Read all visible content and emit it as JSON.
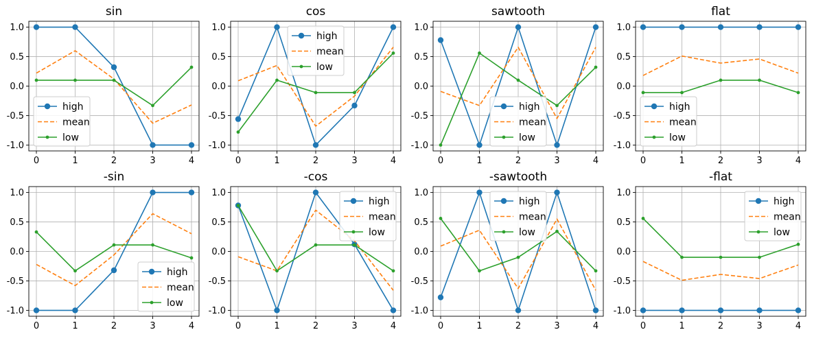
{
  "chart_data": [
    {
      "type": "line",
      "title": "sin",
      "x": [
        0,
        1,
        2,
        3,
        4
      ],
      "xticks": [
        "0",
        "1",
        "2",
        "3",
        "4"
      ],
      "yticks": [
        "1.0",
        "0.5",
        "0.0",
        "-0.5",
        "-1.0"
      ],
      "ylim": [
        -1.1,
        1.1
      ],
      "grid": true,
      "legend": "lower-left",
      "series": [
        {
          "name": "high",
          "values": [
            1.0,
            1.0,
            0.32,
            -1.0,
            -1.0
          ]
        },
        {
          "name": "mean",
          "values": [
            0.22,
            0.6,
            0.12,
            -0.63,
            -0.32
          ]
        },
        {
          "name": "low",
          "values": [
            0.1,
            0.1,
            0.1,
            -0.33,
            0.32
          ]
        }
      ]
    },
    {
      "type": "line",
      "title": "cos",
      "x": [
        0,
        1,
        2,
        3,
        4
      ],
      "xticks": [
        "0",
        "1",
        "2",
        "3",
        "4"
      ],
      "yticks": [
        "1.0",
        "0.5",
        "0.0",
        "-0.5",
        "-1.0"
      ],
      "ylim": [
        -1.1,
        1.1
      ],
      "grid": true,
      "legend": "upper-center",
      "series": [
        {
          "name": "high",
          "values": [
            -0.56,
            1.0,
            -1.0,
            -0.33,
            1.0
          ]
        },
        {
          "name": "mean",
          "values": [
            0.09,
            0.35,
            -0.68,
            -0.17,
            0.66
          ]
        },
        {
          "name": "low",
          "values": [
            -0.78,
            0.1,
            -0.11,
            -0.11,
            0.56
          ]
        }
      ]
    },
    {
      "type": "line",
      "title": "sawtooth",
      "x": [
        0,
        1,
        2,
        3,
        4
      ],
      "xticks": [
        "0",
        "1",
        "2",
        "3",
        "4"
      ],
      "yticks": [
        "1.0",
        "0.5",
        "0.0",
        "-0.5",
        "-1.0"
      ],
      "ylim": [
        -1.1,
        1.1
      ],
      "grid": true,
      "legend": "lower-center",
      "series": [
        {
          "name": "high",
          "values": [
            0.78,
            -1.0,
            1.0,
            -1.0,
            1.0
          ]
        },
        {
          "name": "mean",
          "values": [
            -0.09,
            -0.33,
            0.66,
            -0.55,
            0.66
          ]
        },
        {
          "name": "low",
          "values": [
            -1.0,
            0.56,
            0.1,
            -0.33,
            0.32
          ]
        }
      ]
    },
    {
      "type": "line",
      "title": "flat",
      "x": [
        0,
        1,
        2,
        3,
        4
      ],
      "xticks": [
        "0",
        "1",
        "2",
        "3",
        "4"
      ],
      "yticks": [
        "1.0",
        "0.5",
        "0.0",
        "-0.5",
        "-1.0"
      ],
      "ylim": [
        -1.1,
        1.1
      ],
      "grid": true,
      "legend": "lower-left",
      "series": [
        {
          "name": "high",
          "values": [
            1.0,
            1.0,
            1.0,
            1.0,
            1.0
          ]
        },
        {
          "name": "mean",
          "values": [
            0.18,
            0.51,
            0.39,
            0.46,
            0.22
          ]
        },
        {
          "name": "low",
          "values": [
            -0.11,
            -0.11,
            0.1,
            0.1,
            -0.11
          ]
        }
      ]
    },
    {
      "type": "line",
      "title": "-sin",
      "x": [
        0,
        1,
        2,
        3,
        4
      ],
      "xticks": [
        "0",
        "1",
        "2",
        "3",
        "4"
      ],
      "yticks": [
        "1.0",
        "0.5",
        "0.0",
        "-0.5",
        "-1.0"
      ],
      "ylim": [
        -1.1,
        1.1
      ],
      "grid": true,
      "legend": "lower-right",
      "series": [
        {
          "name": "high",
          "values": [
            -1.0,
            -1.0,
            -0.32,
            1.0,
            1.0
          ]
        },
        {
          "name": "mean",
          "values": [
            -0.22,
            -0.58,
            -0.06,
            0.64,
            0.3
          ]
        },
        {
          "name": "low",
          "values": [
            0.33,
            -0.33,
            0.11,
            0.11,
            -0.11
          ]
        }
      ]
    },
    {
      "type": "line",
      "title": "-cos",
      "x": [
        0,
        1,
        2,
        3,
        4
      ],
      "xticks": [
        "0",
        "1",
        "2",
        "3",
        "4"
      ],
      "yticks": [
        "1.0",
        "0.5",
        "0.0",
        "-0.5",
        "-1.0"
      ],
      "ylim": [
        -1.1,
        1.1
      ],
      "grid": true,
      "legend": "upper-right",
      "series": [
        {
          "name": "high",
          "values": [
            0.78,
            -1.0,
            1.0,
            0.12,
            -1.0
          ]
        },
        {
          "name": "mean",
          "values": [
            -0.09,
            -0.33,
            0.7,
            0.18,
            -0.66
          ]
        },
        {
          "name": "low",
          "values": [
            0.78,
            -0.33,
            0.11,
            0.11,
            -0.33
          ]
        }
      ]
    },
    {
      "type": "line",
      "title": "-sawtooth",
      "x": [
        0,
        1,
        2,
        3,
        4
      ],
      "xticks": [
        "0",
        "1",
        "2",
        "3",
        "4"
      ],
      "yticks": [
        "1.0",
        "0.5",
        "0.0",
        "-0.5",
        "-1.0"
      ],
      "ylim": [
        -1.1,
        1.1
      ],
      "grid": true,
      "legend": "upper-center",
      "series": [
        {
          "name": "high",
          "values": [
            -0.78,
            1.0,
            -1.0,
            1.0,
            -1.0
          ]
        },
        {
          "name": "mean",
          "values": [
            0.09,
            0.36,
            -0.63,
            0.55,
            -0.66
          ]
        },
        {
          "name": "low",
          "values": [
            0.56,
            -0.33,
            -0.1,
            0.34,
            -0.33
          ]
        }
      ]
    },
    {
      "type": "line",
      "title": "-flat",
      "x": [
        0,
        1,
        2,
        3,
        4
      ],
      "xticks": [
        "0",
        "1",
        "2",
        "3",
        "4"
      ],
      "yticks": [
        "1.0",
        "0.5",
        "0.0",
        "-0.5",
        "-1.0"
      ],
      "ylim": [
        -1.1,
        1.1
      ],
      "grid": true,
      "legend": "upper-right",
      "series": [
        {
          "name": "high",
          "values": [
            -1.0,
            -1.0,
            -1.0,
            -1.0,
            -1.0
          ]
        },
        {
          "name": "mean",
          "values": [
            -0.17,
            -0.49,
            -0.39,
            -0.46,
            -0.23
          ]
        },
        {
          "name": "low",
          "values": [
            0.56,
            -0.1,
            -0.1,
            -0.1,
            0.12
          ]
        }
      ]
    }
  ],
  "style": {
    "high_color": "#1f77b4",
    "mean_color": "#ff7f0e",
    "low_color": "#2ca02c",
    "grid_color": "#b0b0b0",
    "axis_color": "#000000"
  }
}
